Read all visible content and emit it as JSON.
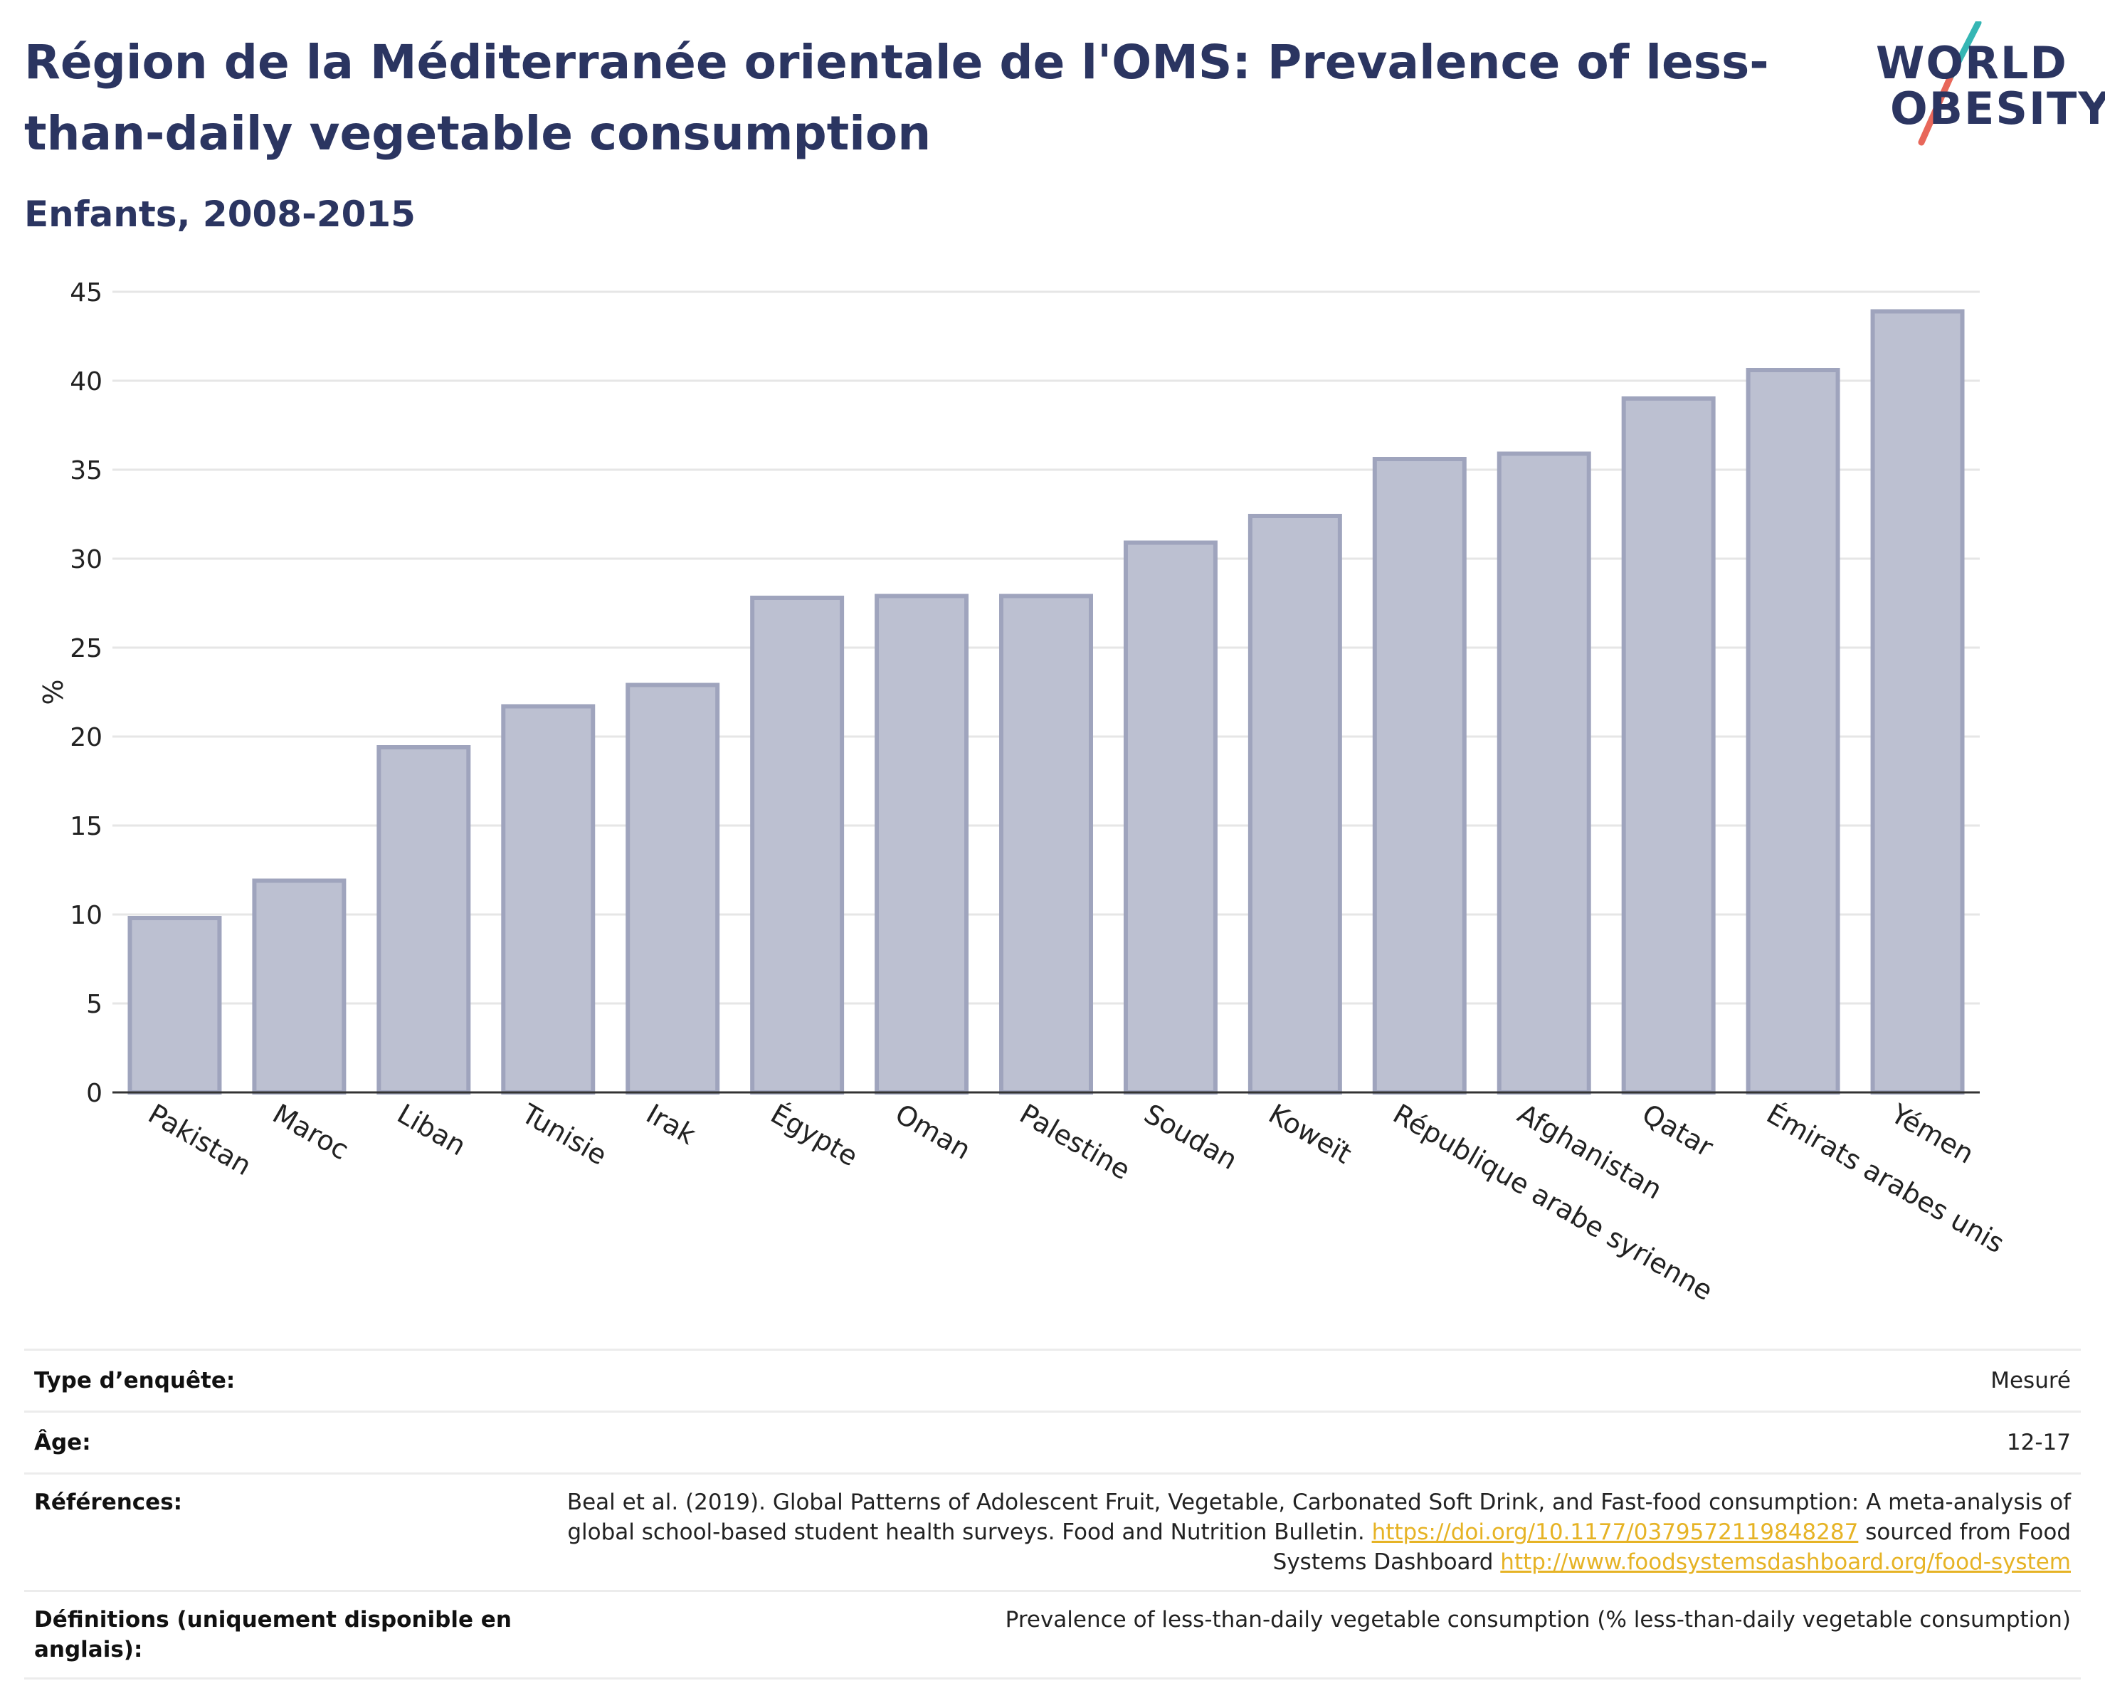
{
  "header": {
    "title": "Région de la Méditerranée orientale de l'OMS: Prevalence of less-than-daily vegetable consumption",
    "subtitle": "Enfants, 2008-2015"
  },
  "logo": {
    "line1": "WORLD",
    "line2": "OBESITY",
    "colors": {
      "teal": "#35b6b4",
      "coral": "#e8675a",
      "navy": "#2b3561"
    }
  },
  "chart_data": {
    "type": "bar",
    "ylabel": "%",
    "xlabel": "",
    "ylim": [
      0,
      45
    ],
    "yticks": [
      0,
      5,
      10,
      15,
      20,
      25,
      30,
      35,
      40,
      45
    ],
    "grid": true,
    "bar_color": "#bcc0d1",
    "bar_edge_color": "#9fa4bd",
    "categories": [
      "Pakistan",
      "Maroc",
      "Liban",
      "Tunisie",
      "Irak",
      "Égypte",
      "Oman",
      "Palestine",
      "Soudan",
      "Koweït",
      "République arabe syrienne",
      "Afghanistan",
      "Qatar",
      "Émirats arabes unis",
      "Yémen"
    ],
    "values": [
      9.8,
      11.9,
      19.4,
      21.7,
      22.9,
      27.8,
      27.9,
      27.9,
      30.9,
      32.4,
      35.6,
      35.9,
      39.0,
      40.6,
      43.9
    ]
  },
  "meta": {
    "survey_type_label": "Type d’enquête:",
    "survey_type_value": "Mesuré",
    "age_label": "Âge:",
    "age_value": "12-17",
    "references_label": "Références:",
    "references_text_1": "Beal et al. (2019). Global Patterns of Adolescent Fruit, Vegetable, Carbonated Soft Drink, and Fast-food consumption: A meta-analysis of global school-based student health surveys. Food and Nutrition Bulletin.",
    "references_link_1": "https://doi.org/10.1177/0379572119848287",
    "references_text_2": "sourced from Food Systems Dashboard",
    "references_link_2": "http://www.foodsystemsdashboard.org/food-system",
    "definitions_label": "Définitions (uniquement disponible en anglais):",
    "definitions_value": "Prevalence of less-than-daily vegetable consumption (% less-than-daily vegetable consumption)"
  }
}
